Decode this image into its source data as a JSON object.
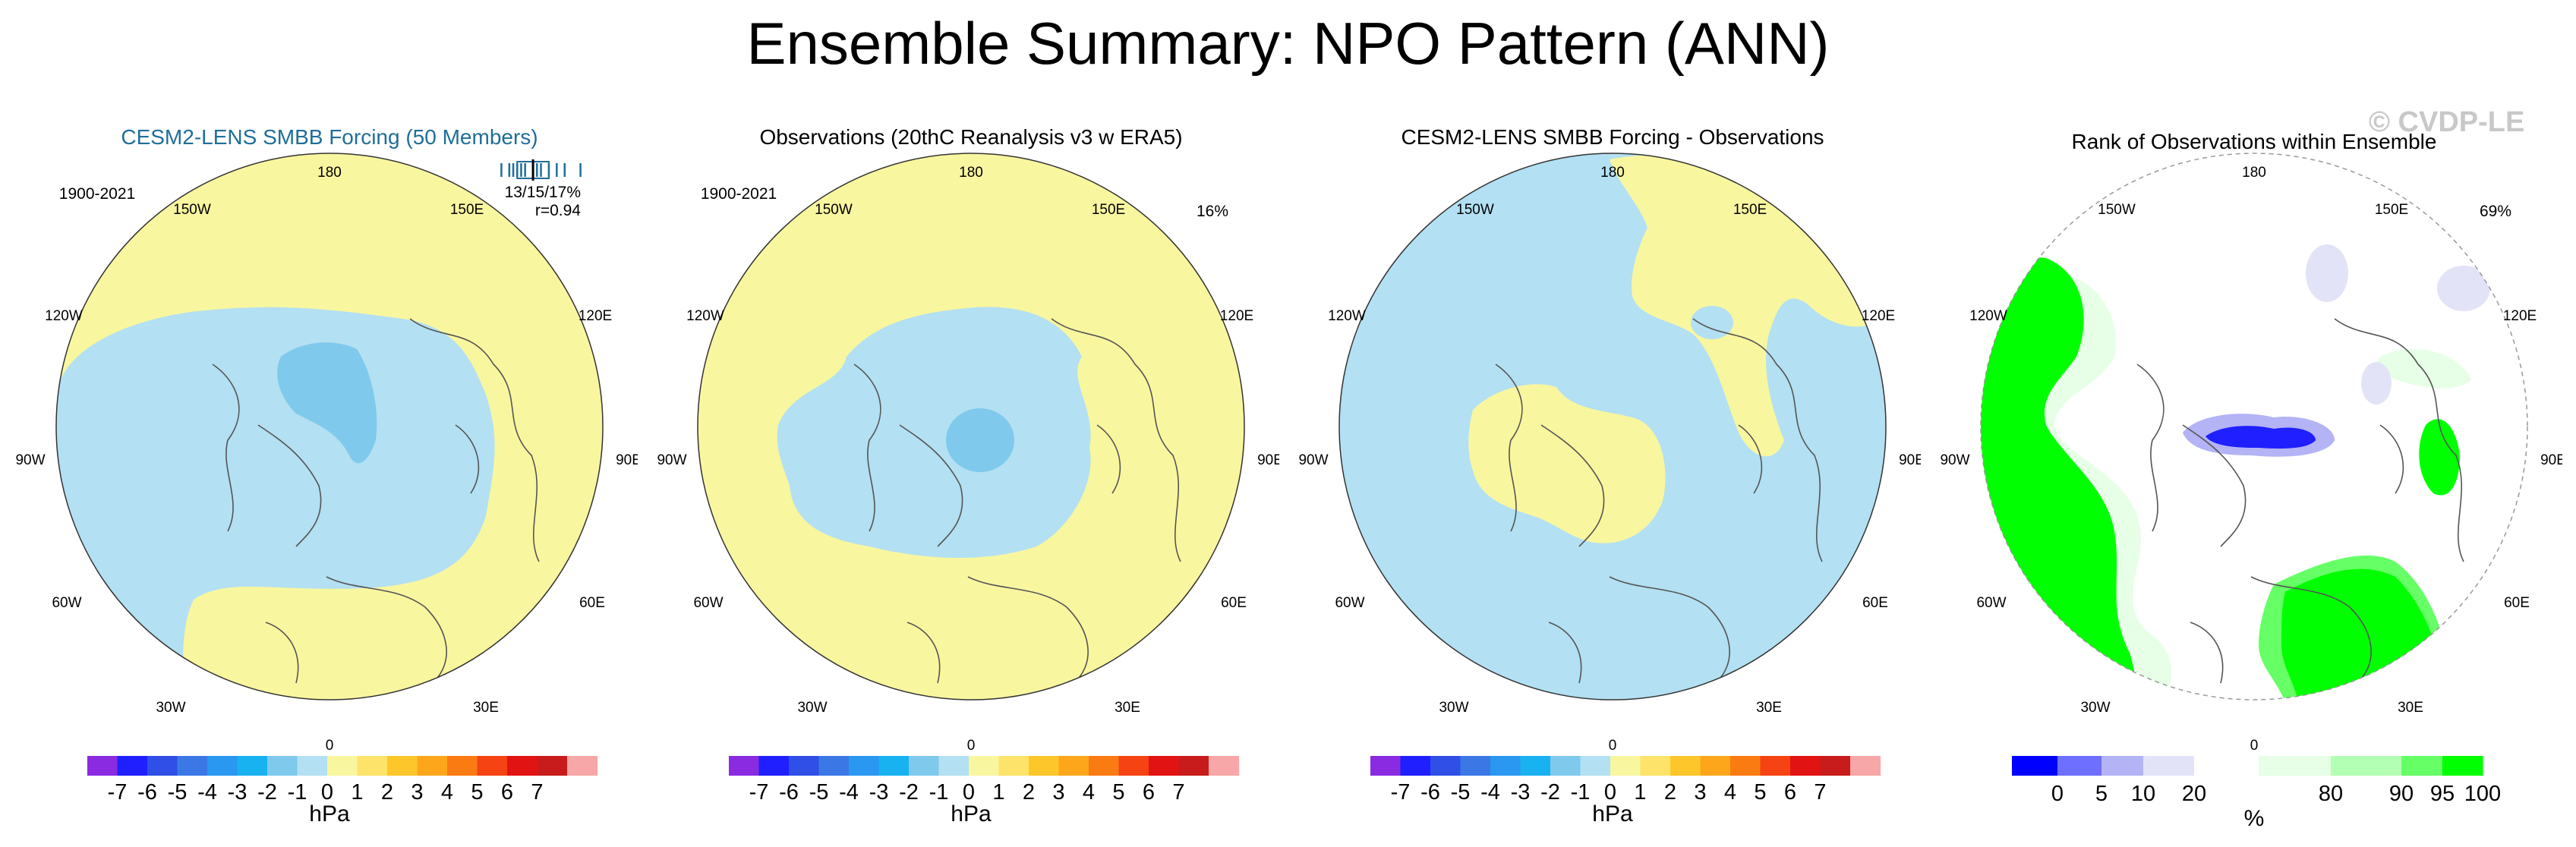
{
  "title": "Ensemble Summary: NPO Pattern (ANN)",
  "watermark": "© CVDP-LE",
  "colors": {
    "neg7": "#8a2be2",
    "neg6": "#1f1fff",
    "neg5": "#2f4fe6",
    "neg4": "#3b78e6",
    "neg3": "#2a97f0",
    "neg2": "#19b2f0",
    "neg1": "#7fc9ec",
    "neg0": "#b3e0f2",
    "pos0": "#f9f6a0",
    "pos1": "#fde36a",
    "pos2": "#fdc72b",
    "pos3": "#fda61c",
    "pos4": "#fb7b13",
    "pos5": "#f54314",
    "pos6": "#e21313",
    "pos7": "#c81c1c",
    "pos8": "#f7a7a7",
    "title_blue": "#1f6e99",
    "rank0": "#0000ff",
    "rank5": "#6e6eff",
    "rank10": "#b3b3f5",
    "rank20": "#e3e3f7",
    "rank50": "#ffffff",
    "rank80": "#e6ffe6",
    "rank90": "#b3ffb3",
    "rank95": "#66ff66",
    "rank100": "#00ff00"
  },
  "chart_data": [
    {
      "type": "polar-map",
      "title": "CESM2-LENS SMBB Forcing (50 Members)",
      "period": "1900-2021",
      "stats": "13/15/17%",
      "r": "r=0.94",
      "legend_strip_values": [
        11,
        12,
        12.5,
        13,
        13.5,
        14,
        15,
        15.5,
        16,
        17,
        18,
        19,
        21
      ],
      "lon_labels": [
        "180",
        "150W",
        "150E",
        "120W",
        "120E",
        "90W",
        "90E",
        "60W",
        "60E",
        "30W",
        "30E",
        "0"
      ],
      "colorbar": {
        "ticks": [
          "-7",
          "-6",
          "-5",
          "-4",
          "-3",
          "-2",
          "-1",
          "0",
          "1",
          "2",
          "3",
          "4",
          "5",
          "6",
          "7"
        ],
        "unit": "hPa"
      }
    },
    {
      "type": "polar-map",
      "title": "Observations (20thC Reanalysis v3 w ERA5)",
      "period": "1900-2021",
      "pct": "16%",
      "lon_labels": [
        "180",
        "150W",
        "150E",
        "120W",
        "120E",
        "90W",
        "90E",
        "60W",
        "60E",
        "30W",
        "30E",
        "0"
      ],
      "colorbar": {
        "ticks": [
          "-7",
          "-6",
          "-5",
          "-4",
          "-3",
          "-2",
          "-1",
          "0",
          "1",
          "2",
          "3",
          "4",
          "5",
          "6",
          "7"
        ],
        "unit": "hPa"
      }
    },
    {
      "type": "polar-map",
      "title": "CESM2-LENS SMBB Forcing - Observations",
      "lon_labels": [
        "180",
        "150W",
        "150E",
        "120W",
        "120E",
        "90W",
        "90E",
        "60W",
        "60E",
        "30W",
        "30E",
        "0"
      ],
      "colorbar": {
        "ticks": [
          "-7",
          "-6",
          "-5",
          "-4",
          "-3",
          "-2",
          "-1",
          "0",
          "1",
          "2",
          "3",
          "4",
          "5",
          "6",
          "7"
        ],
        "unit": "hPa"
      }
    },
    {
      "type": "polar-map",
      "title": "Rank of Observations within Ensemble",
      "pct": "69%",
      "lon_labels": [
        "180",
        "150W",
        "150E",
        "120W",
        "120E",
        "90W",
        "90E",
        "60W",
        "60E",
        "30W",
        "30E",
        "0"
      ],
      "colorbar": {
        "ticks": [
          "0",
          "5",
          "10",
          "20",
          "80",
          "90",
          "95",
          "100"
        ],
        "unit": "%"
      }
    }
  ]
}
